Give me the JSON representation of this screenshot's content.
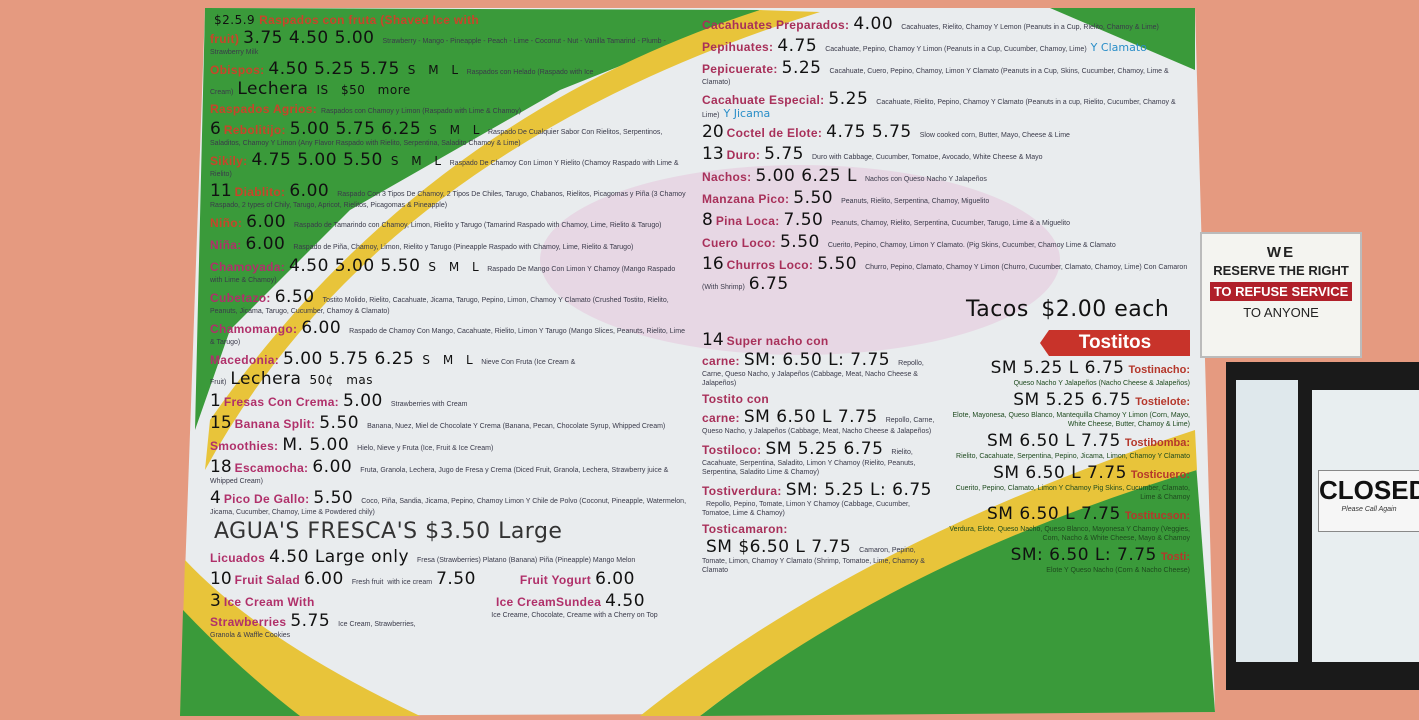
{
  "colors": {
    "wall": "#e59a80",
    "board_green": "#3a9a3a",
    "board_yellow": "#e8c43a",
    "board_white": "#e9ecee",
    "title_red": "#c8452a",
    "title_magenta": "#b0306a",
    "tostitos_red": "#c8332a"
  },
  "left_items": [
    {
      "title": "Raspados con fruta (Shaved Ice with fruit)",
      "desc": "Strawberry - Mango - Pineapple - Peach - Lime - Coconut - Nut - Vanilla  Tamarind - Plumb - Strawberry Milk",
      "price": "3.75 4.50 5.00",
      "note": "$2.5.9"
    },
    {
      "title": "Obispos:",
      "desc": "Raspados con Helado (Raspado with Ice Cream)",
      "price": "4.50 5.25 5.75",
      "sizes": "S M L"
    },
    {
      "title": "Raspados Agrios:",
      "desc": "Raspados con Chamoy y Limon (Raspado with Lime & Chamoy)"
    },
    {
      "title": "Rebolitijo:",
      "desc": "Raspado De Cualquier Sabor Con Rielitos, Serpentinos, Saladitos, Chamoy Y Limon (Any Flavor Raspado with Rielito, Serpentina, Saladito Chamoy & Lime)",
      "price": "5.00 5.75 6.25",
      "sizes": "S M L",
      "num": "6"
    },
    {
      "title": "Sikily:",
      "desc": "Raspado De Chamoy Con Limon Y Rielito (Chamoy Raspado with Lime & Rielito)",
      "price": "4.75 5.00 5.50",
      "sizes": "S M L"
    },
    {
      "title": "Diablito:",
      "desc": "Raspado Con 3 Tipos De Chamoy, 2 Tipos De Chiles, Tarugo, Chabanos, Rielitos, Picagomas y Piña (3 Chamoy Raspado, 2 types of Chily, Tarugo, Apricot, Rielitos, Picagomas & Pineapple)",
      "price": "6.00",
      "num": "11"
    },
    {
      "title": "Niño:",
      "desc": "Raspado de Tamarindo con Chamoy, Limon, Rielito y Tarugo (Tamarind Raspado with Chamoy, Lime, Rielito & Tarugo)",
      "price": "6.00"
    },
    {
      "title": "Niña:",
      "desc": "Raspado de Piña, Chamoy, Limon, Rielito y Tarugo (Pineapple Raspado with Chamoy, Lime, Rielito & Tarugo)",
      "price": "6.00"
    },
    {
      "title": "Chamoyada:",
      "desc": "Raspado De Mango Con Limon Y Chamoy (Mango Raspado with Lime & Chamoy)",
      "price": "4.50 5.00 5.50",
      "sizes": "S M L"
    },
    {
      "title": "Cubetazo:",
      "desc": "Tostito Molido, Rielito, Cacahuate, Jicama, Tarugo, Pepino, Limon, Chamoy Y Clamato (Crushed Tostito, Rielito, Peanuts, Jicama, Tarugo, Cucumber, Chamoy & Clamato)",
      "price": "6.50"
    },
    {
      "title": "Chamomango:",
      "desc": "Raspado de Chamoy Con Mango, Cacahuate, Rielito, Limon Y Tarugo (Mango Slices, Peanuts, Rielito, Lime & Tarugo)",
      "price": "6.00"
    },
    {
      "title": "Macedonia:",
      "desc": "Nieve Con Fruta (Ice Cream & Fruit)",
      "price": "5.00 5.75 6.25",
      "sizes": "S M L"
    },
    {
      "title": "Fresas Con Crema:",
      "desc": "Strawberries with Cream",
      "price": "5.00",
      "num": "1"
    },
    {
      "title": "Banana Split:",
      "desc": "Banana, Nuez, Miel de Chocolate Y Crema (Banana, Pecan, Chocolate Syrup, Whipped Cream)",
      "price": "5.50",
      "num": "15"
    },
    {
      "title": "Smoothies:",
      "desc": "Hielo, Nieve y Fruta (Ice, Fruit & Ice Cream)",
      "price": "M. 5.00"
    },
    {
      "title": "Escamocha:",
      "desc": "Fruta, Granola, Lechera, Jugo de Fresa y Crema (Diced Fruit, Granola, Lechera, Strawberry juice & Whipped Cream)",
      "price": "6.00",
      "num": "18"
    },
    {
      "title": "Pico De Gallo:",
      "desc": "Coco, Piña, Sandia, Jicama, Pepino, Chamoy Limon Y Chile de Polvo (Coconut, Pineapple, Watermelon, Jicama, Cucumber, Chamoy, Lime & Powdered chily)",
      "price": "5.50",
      "num": "4"
    },
    {
      "title": "Licuados",
      "desc": "Fresa (Strawberries) Platano (Banana) Piña (Pineapple) Mango Melon",
      "price": "4.50 Large only"
    },
    {
      "title": "Fruit Salad",
      "desc": "Fresh fruit",
      "price": "6.00",
      "num": "10"
    },
    {
      "title": "Ice Cream With Strawberries",
      "desc": "Ice Cream, Strawberries, Granola & Waffle Cookies",
      "price": "5.75",
      "num": "3"
    }
  ],
  "fruit_salad_extra": {
    "label": "with ice cream",
    "price": "7.50"
  },
  "fruit_yogurt": {
    "title": "Fruit Yogurt",
    "price": "6.00"
  },
  "sundae": {
    "title": "Ice CreamSundea",
    "desc": "Ice Creame, Chocolate, Creame with a Cherry on Top",
    "price": "4.50"
  },
  "handwritten": {
    "aguas": "AGUA'S FRESCA'S $3.50 Large",
    "lechera1": "Lechera",
    "lechera1_b": "IS $50 more",
    "lechera2": "Lechera",
    "lechera2_b": "50¢ mas",
    "tacos": "Tacos",
    "tacos_price": "$2.00 each"
  },
  "right_items": [
    {
      "title": "Cacahuates Preparados:",
      "desc": "Cacahuates, Rielito, Chamoy Y Lemon (Peanuts in a Cup, Rielito, Chamoy & Lime)",
      "price": "4.00"
    },
    {
      "title": "Pepihuates:",
      "desc": "Cacahuate, Pepino, Chamoy Y Limon (Peanuts in a Cup, Cucumber, Chamoy, Lime)",
      "price": "4.75",
      "extra": "Y Clamato"
    },
    {
      "title": "Pepicuerate:",
      "desc": "Cacahuate, Cuero, Pepino, Chamoy, Limon Y Clamato (Peanuts in a Cup, Skins, Cucumber, Chamoy, Lime & Clamato)",
      "price": "5.25"
    },
    {
      "title": "Cacahuate Especial:",
      "desc": "Cacahuate, Rielito, Pepino, Chamoy Y Clamato (Peanuts in a cup, Rielito, Cucumber, Chamoy & Lime)",
      "price": "5.25",
      "extra": "Y Jicama"
    },
    {
      "title": "Coctel de Elote:",
      "desc": "Slow cooked corn, Butter, Mayo, Cheese & Lime",
      "price": "4.75 5.75",
      "num": "20"
    },
    {
      "title": "Duro:",
      "desc": "Duro with Cabbage, Cucumber, Tomatoe, Avocado, White Cheese & Mayo",
      "price": "5.75",
      "num": "13"
    },
    {
      "title": "Nachos:",
      "desc": "Nachos con Queso Nacho Y Jalapeños",
      "price": "5.00 6.25 L"
    },
    {
      "title": "Manzana Pico:",
      "desc": "Peanuts, Rielito, Serpentina, Chamoy, Miguelito",
      "price": "5.50"
    },
    {
      "title": "Pina Loca:",
      "desc": "Peanuts, Chamoy, Rielito, Serpentina, Cucumber, Tarugo, Lime & a Miguelito",
      "price": "7.50",
      "num": "8"
    },
    {
      "title": "Cuero Loco:",
      "desc": "Cuerito, Pepino, Chamoy, Limon Y Clamato. (Pig Skins, Cucumber, Chamoy Lime & Clamato",
      "price": "5.50"
    },
    {
      "title": "Churros Loco:",
      "desc": "Churro, Pepino, Clamato, Chamoy Y Limon (Churro, Cucumber, Clamato, Chamoy, Lime) Con Camaron (With Shrimp)",
      "price": "5.50",
      "extra": "6.75",
      "num": "16"
    },
    {
      "title": "Super nacho con carne:",
      "desc": "Repollo, Carne, Queso Nacho, y Jalapeños (Cabbage, Meat, Nacho Cheese & Jalapeños)",
      "price": "SM: 6.50 L: 7.75",
      "num": "14"
    },
    {
      "title": "Tostito con carne:",
      "desc": "Repollo, Carne, Queso Nacho, y Jalapeños (Cabbage, Meat, Nacho Cheese & Jalapeños)",
      "price": "SM 6.50 L 7.75"
    },
    {
      "title": "Tostiloco:",
      "desc": "Rielito, Cacahuate, Serpentina, Saladito, Limon Y Chamoy (Rielito, Peanuts, Serpentina, Saladito Lime & Chamoy)",
      "price": "SM 5.25 6.75"
    },
    {
      "title": "Tostiverdura:",
      "desc": "Repollo, Pepino, Tomate, Limon Y Chamoy (Cabbage, Cucumber, Tomatoe, Lime & Chamoy)",
      "price": "SM: 5.25 L: 6.75"
    },
    {
      "title": "Tosticamaron:",
      "desc": "Camaron, Pepino, Tomate, Limon, Chamoy Y Clamato (Shrimp, Tomatoe, Lime, Chamoy & Clamato",
      "price": "SM $6.50 L 7.75"
    }
  ],
  "tostitos": {
    "header": "Tostitos",
    "items": [
      {
        "title": "Tostinacho:",
        "desc": "Queso Nacho Y Jalapeños (Nacho Cheese & Jalapeños)",
        "price": "SM 5.25 L 6.75"
      },
      {
        "title": "Tostielote:",
        "desc": "Elote, Mayonesa, Queso Blanco, Mantequilla Chamoy Y Limon (Corn, Mayo, White Cheese, Butter, Chamoy & Lime)",
        "price": "SM 5.25 6.75"
      },
      {
        "title": "Tostibomba:",
        "desc": "Rielito, Cacahuate, Serpentina, Pepino, Jicama, Limon, Chamoy Y Clamato",
        "price": "SM 6.50 L 7.75"
      },
      {
        "title": "Tosticuero:",
        "desc": "Cuerito, Pepino, Clamato, Limon Y Chamoy Pig Skins, Cucumber, Clamato, Lime & Chamoy",
        "price": "SM 6.50 L 7.75"
      },
      {
        "title": "Tostitucson:",
        "desc": "Verdura, Elote, Queso Nacho, Queso Blanco, Mayonesa Y Chamoy (Veggies, Corn, Nacho & White Cheese, Mayo & Chamoy",
        "price": "SM 6.50 L 7.75"
      },
      {
        "title": "Tosti:",
        "desc": "Elote Y Queso Nacho (Corn & Nacho Cheese)",
        "price": "SM: 6.50 L: 7.75"
      }
    ]
  },
  "sign": {
    "line1": "WE",
    "line2": "RESERVE THE RIGHT",
    "line3": "TO REFUSE SERVICE",
    "line4": "TO ANYONE"
  },
  "door_sign": {
    "title": "CLOSED",
    "subtitle": "Please Call Again"
  }
}
